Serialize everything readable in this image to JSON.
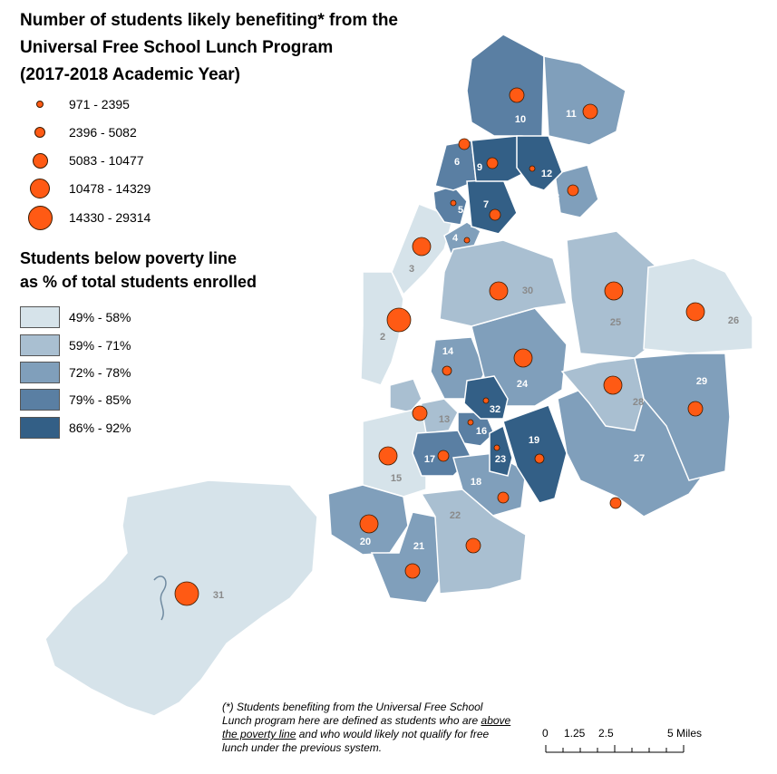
{
  "title": {
    "line1": "Number of students likely benefiting* from the",
    "line2": "Universal Free School Lunch Program",
    "line3": "(2017-2018 Academic Year)"
  },
  "size_legend": [
    {
      "label": "971 - 2395"
    },
    {
      "label": "2396 - 5082"
    },
    {
      "label": "5083 - 10477"
    },
    {
      "label": "10478 - 14329"
    },
    {
      "label": "14330 - 29314"
    }
  ],
  "color_legend": {
    "title_line1": "Students below poverty line",
    "title_line2": "as % of total students enrolled",
    "items": [
      {
        "label": "49% - 58%",
        "color": "#d6e3ea"
      },
      {
        "label": "59% - 71%",
        "color": "#a9bfd1"
      },
      {
        "label": "72% - 78%",
        "color": "#809fbb"
      },
      {
        "label": "79% - 85%",
        "color": "#5a7fa3"
      },
      {
        "label": "86% - 92%",
        "color": "#335f86"
      }
    ]
  },
  "districts": [
    {
      "id": "1",
      "cls": 1
    },
    {
      "id": "2",
      "cls": 0
    },
    {
      "id": "3",
      "cls": 0
    },
    {
      "id": "4",
      "cls": 2
    },
    {
      "id": "5",
      "cls": 3
    },
    {
      "id": "6",
      "cls": 3
    },
    {
      "id": "7",
      "cls": 4
    },
    {
      "id": "8",
      "cls": 2
    },
    {
      "id": "9",
      "cls": 4
    },
    {
      "id": "10",
      "cls": 3
    },
    {
      "id": "11",
      "cls": 2
    },
    {
      "id": "12",
      "cls": 4
    },
    {
      "id": "13",
      "cls": 1
    },
    {
      "id": "14",
      "cls": 2
    },
    {
      "id": "15",
      "cls": 0
    },
    {
      "id": "16",
      "cls": 3
    },
    {
      "id": "17",
      "cls": 3
    },
    {
      "id": "18",
      "cls": 2
    },
    {
      "id": "19",
      "cls": 4
    },
    {
      "id": "20",
      "cls": 2
    },
    {
      "id": "21",
      "cls": 2
    },
    {
      "id": "22",
      "cls": 1
    },
    {
      "id": "23",
      "cls": 4
    },
    {
      "id": "24",
      "cls": 2
    },
    {
      "id": "25",
      "cls": 1
    },
    {
      "id": "26",
      "cls": 0
    },
    {
      "id": "27",
      "cls": 2
    },
    {
      "id": "28",
      "cls": 1
    },
    {
      "id": "29",
      "cls": 2
    },
    {
      "id": "30",
      "cls": 1
    },
    {
      "id": "31",
      "cls": 0
    },
    {
      "id": "32",
      "cls": 4
    }
  ],
  "footnote": {
    "part1": "(*) Students benefiting from the Universal Free School Lunch program here are defined as students who are ",
    "underlined": "above the poverty line",
    "part2": " and who would likely not qualify for free lunch under the previous system."
  },
  "scale_bar": {
    "t0": "0",
    "t1": "1.25",
    "t2": "2.5",
    "t3": "5 Miles"
  },
  "colors": {
    "bubble_fill": "#ff5a14",
    "bubble_stroke": "#3a1a00",
    "boundary": "#ffffff"
  }
}
